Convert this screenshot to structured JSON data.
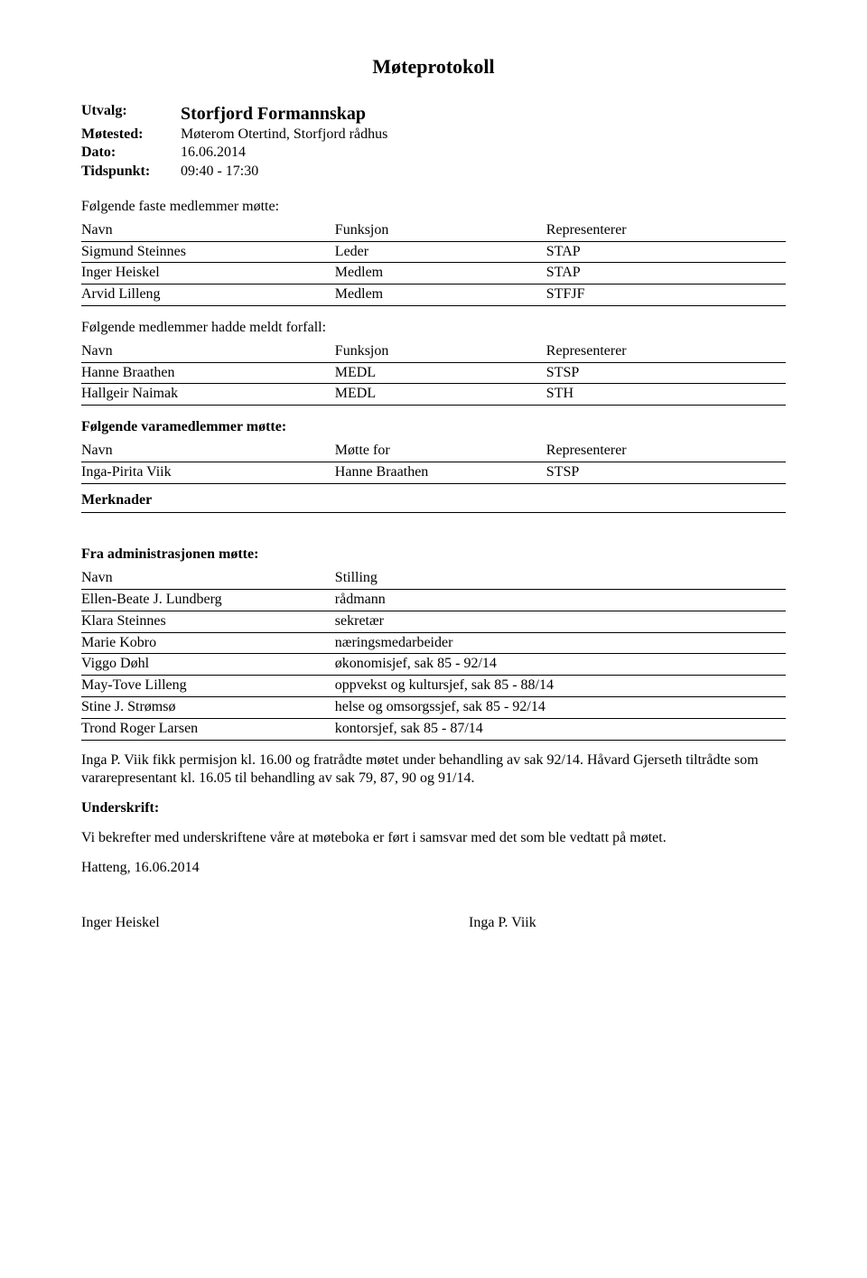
{
  "title": "Møteprotokoll",
  "meta": {
    "utvalg_label": "Utvalg:",
    "utvalg_value": "Storfjord Formannskap",
    "motested_label": "Møtested:",
    "motested_value": "Møterom Otertind, Storfjord rådhus",
    "dato_label": "Dato:",
    "dato_value": "16.06.2014",
    "tidspunkt_label": "Tidspunkt:",
    "tidspunkt_value": "09:40 - 17:30"
  },
  "section1": {
    "heading": "Følgende faste medlemmer møtte:",
    "cols": [
      "Navn",
      "Funksjon",
      "Representerer"
    ],
    "rows": [
      [
        "Sigmund Steinnes",
        "Leder",
        "STAP"
      ],
      [
        "Inger Heiskel",
        "Medlem",
        "STAP"
      ],
      [
        "Arvid Lilleng",
        "Medlem",
        "STFJF"
      ]
    ]
  },
  "section2": {
    "heading": "Følgende medlemmer hadde meldt forfall:",
    "cols": [
      "Navn",
      "Funksjon",
      "Representerer"
    ],
    "rows": [
      [
        "Hanne Braathen",
        "MEDL",
        "STSP"
      ],
      [
        "Hallgeir Naimak",
        "MEDL",
        "STH"
      ]
    ]
  },
  "section3": {
    "heading": "Følgende varamedlemmer møtte:",
    "cols": [
      "Navn",
      "Møtte for",
      "Representerer"
    ],
    "rows": [
      [
        "Inga-Pirita Viik",
        "Hanne Braathen",
        "STSP"
      ]
    ]
  },
  "merknader_label": "Merknader",
  "section4": {
    "heading": "Fra administrasjonen møtte:",
    "cols": [
      "Navn",
      "Stilling"
    ],
    "rows": [
      [
        "Ellen-Beate J. Lundberg",
        "rådmann"
      ],
      [
        "Klara Steinnes",
        "sekretær"
      ],
      [
        "Marie Kobro",
        "næringsmedarbeider"
      ],
      [
        "Viggo Døhl",
        "økonomisjef, sak 85 - 92/14"
      ],
      [
        "May-Tove Lilleng",
        "oppvekst og kultursjef, sak 85 - 88/14"
      ],
      [
        "Stine J. Strømsø",
        "helse og omsorgssjef, sak 85 - 92/14"
      ],
      [
        "Trond Roger Larsen",
        "kontorsjef, sak 85 - 87/14"
      ]
    ]
  },
  "para1": "Inga P. Viik fikk permisjon kl. 16.00 og fratrådte møtet under behandling av sak 92/14. Håvard Gjerseth tiltrådte som vararepresentant kl. 16.05 til behandling av sak 79, 87, 90 og 91/14.",
  "underskrift_label": "Underskrift:",
  "para2": "Vi bekrefter med underskriftene våre at møteboka er ført i samsvar med det som ble vedtatt på møtet.",
  "place_date": "Hatteng, 16.06.2014",
  "sign_left": "Inger Heiskel",
  "sign_right": "Inga P. Viik"
}
